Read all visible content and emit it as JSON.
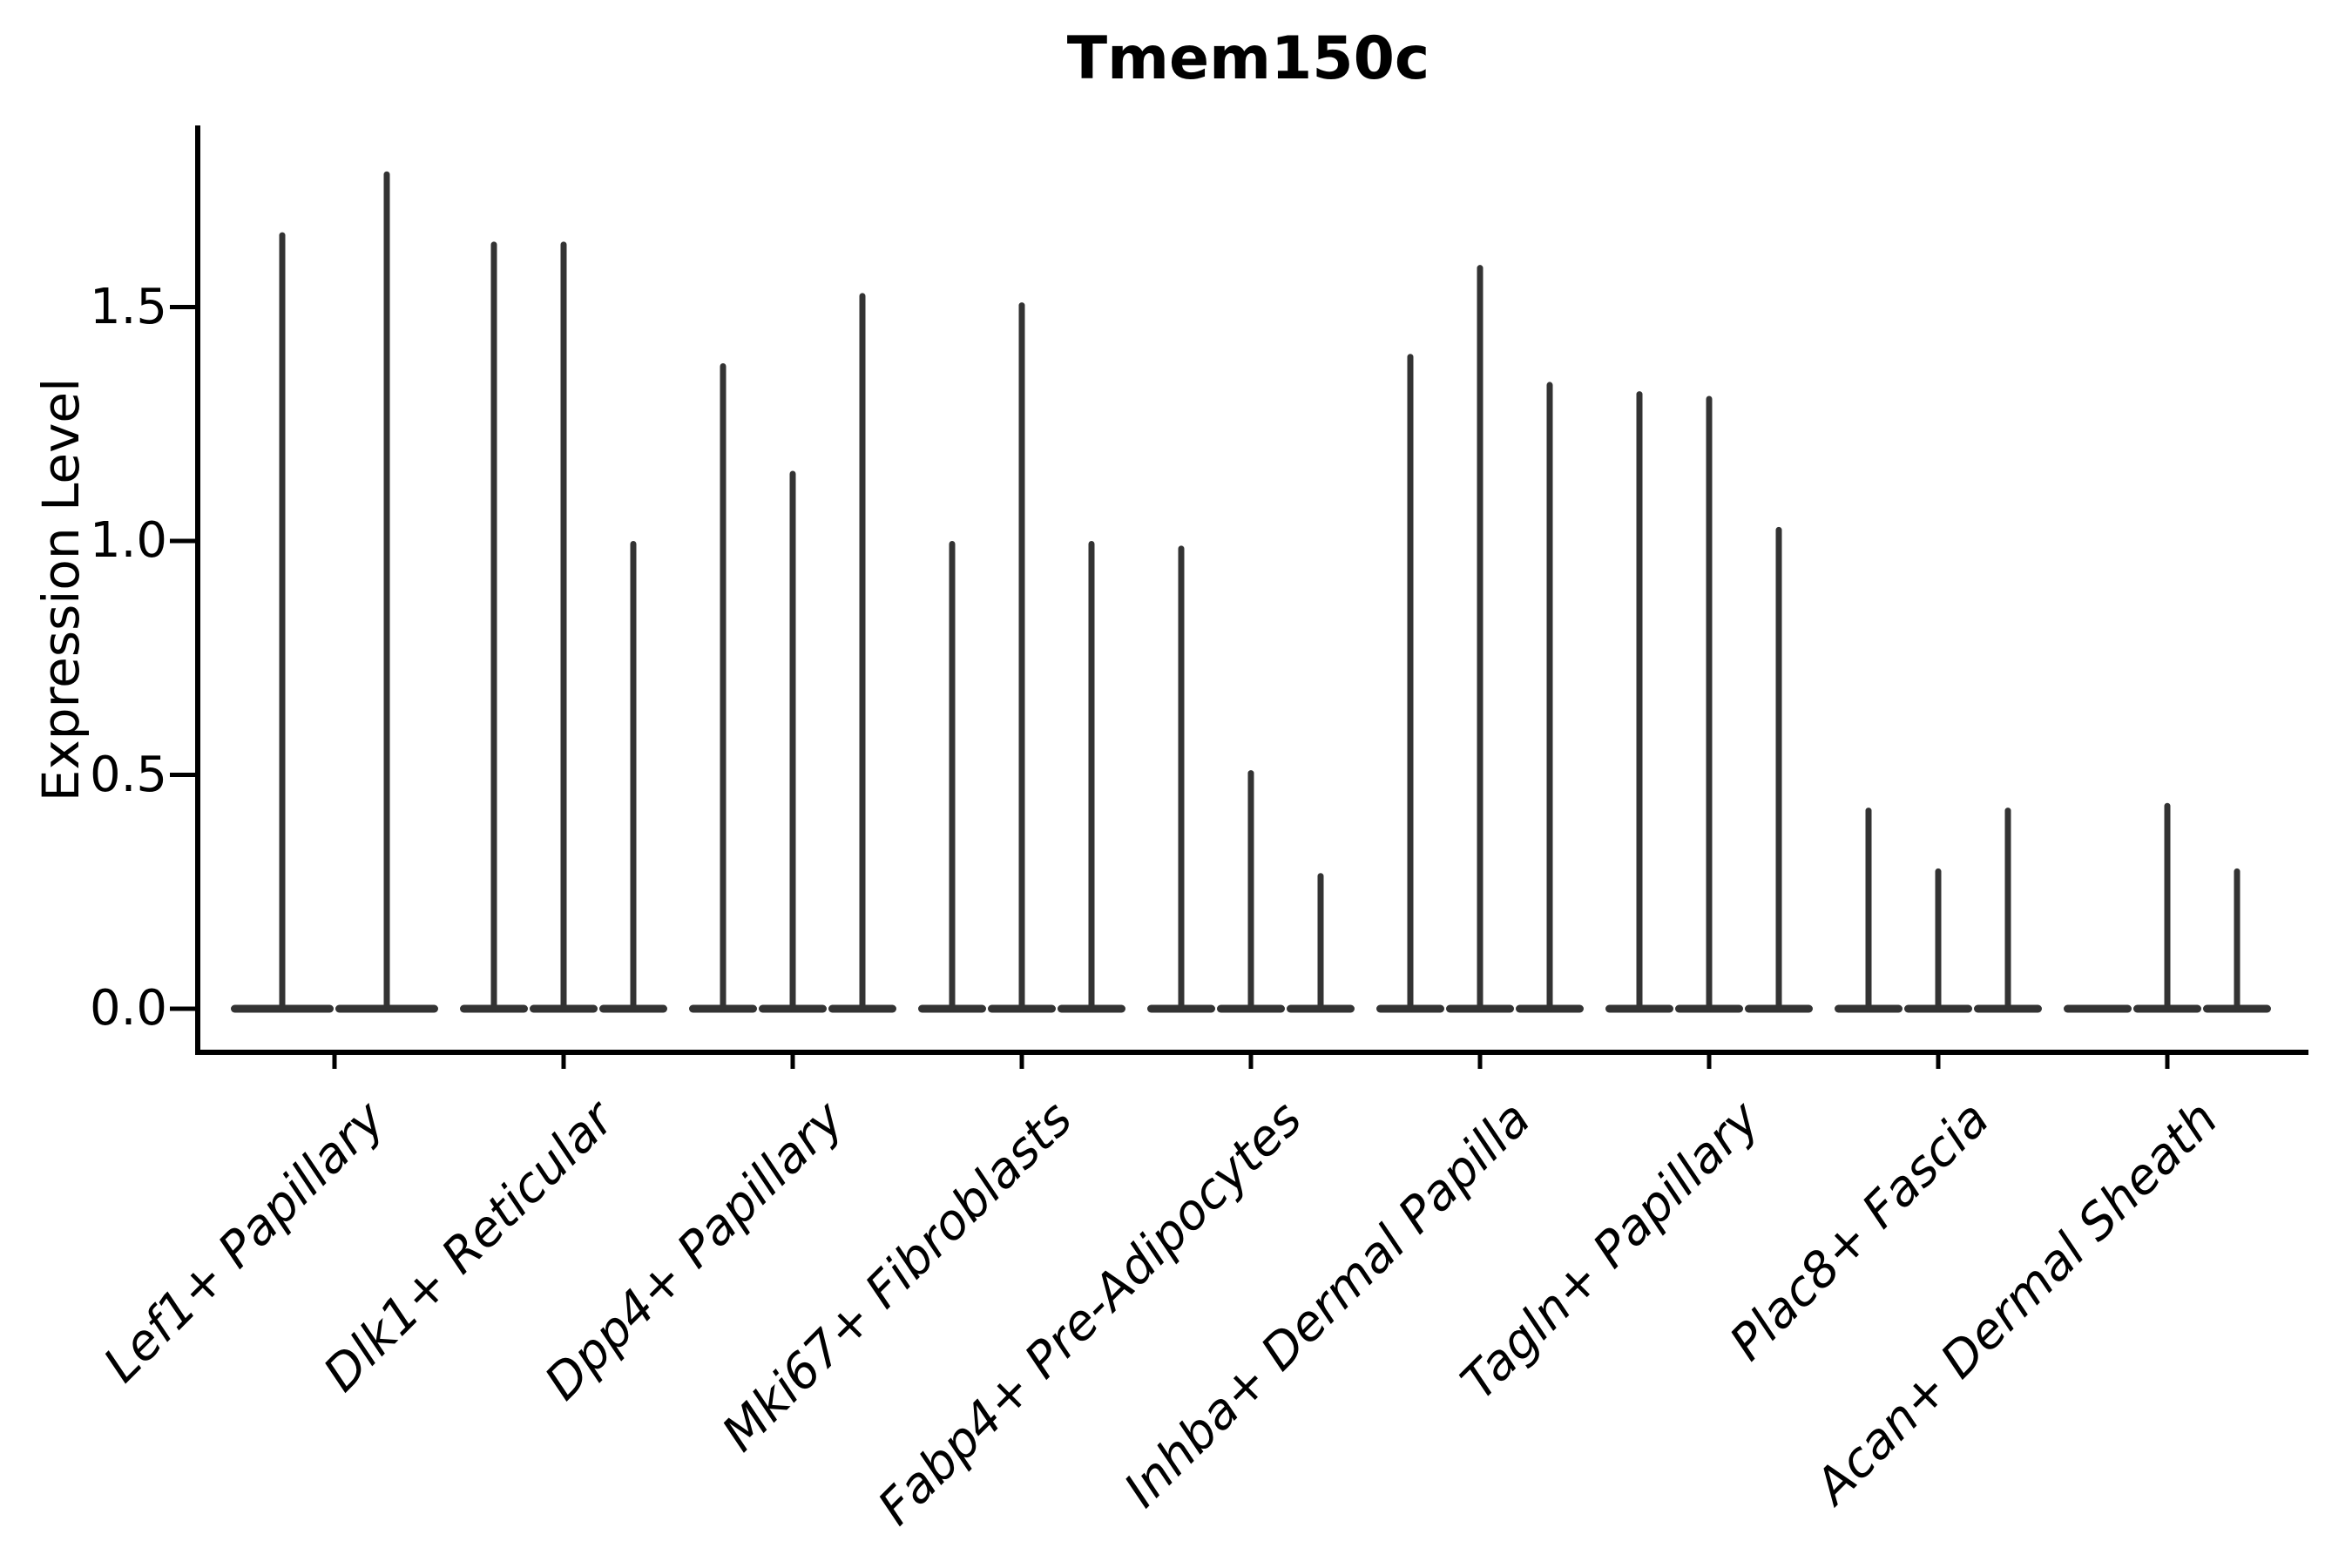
{
  "figure": {
    "title": "Tmem150c",
    "background_color": "#ffffff"
  },
  "chart_data": {
    "type": "violin",
    "title": "Tmem150c",
    "xlabel": "",
    "ylabel": "Expression Level",
    "categories": [
      "Lef1+ Papillary",
      "Dlk1+ Reticular",
      "Dpp4+ Papillary",
      "Mki67+ Fibroblasts",
      "Fabp4+ Pre-Adipocytes",
      "Inhba+ Dermal Papilla",
      "Tagln+ Papillary",
      "Plac8+ Fascia",
      "Acan+ Dermal Sheath"
    ],
    "series": [
      {
        "category": "Lef1+ Papillary",
        "violin_max_expression": [
          1.66,
          1.79
        ]
      },
      {
        "category": "Dlk1+ Reticular",
        "violin_max_expression": [
          1.64,
          1.64,
          1.0
        ]
      },
      {
        "category": "Dpp4+ Papillary",
        "violin_max_expression": [
          1.38,
          1.15,
          1.53
        ]
      },
      {
        "category": "Mki67+ Fibroblasts",
        "violin_max_expression": [
          1.0,
          1.51,
          1.0
        ]
      },
      {
        "category": "Fabp4+ Pre-Adipocytes",
        "violin_max_expression": [
          0.99,
          0.51,
          0.29
        ]
      },
      {
        "category": "Inhba+ Dermal Papilla",
        "violin_max_expression": [
          1.4,
          1.59,
          1.34
        ]
      },
      {
        "category": "Tagln+ Papillary",
        "violin_max_expression": [
          1.32,
          1.31,
          1.03
        ]
      },
      {
        "category": "Plac8+ Fascia",
        "violin_max_expression": [
          0.43,
          0.3,
          0.43
        ]
      },
      {
        "category": "Acan+ Dermal Sheath",
        "violin_max_expression": [
          0.0,
          0.44,
          0.3
        ]
      }
    ],
    "yticks": [
      0.0,
      0.5,
      1.0,
      1.5
    ],
    "ylim": [
      0,
      1.89
    ],
    "grid": false,
    "legend": false,
    "violin_shape_note": "each violin renders as a flat density base at 0 with a thin vertical spike up to its max expression; a 0.00 max means base only",
    "style": {
      "violin_color": "#333333",
      "axis_color": "#000000",
      "text_color": "#000000"
    }
  }
}
